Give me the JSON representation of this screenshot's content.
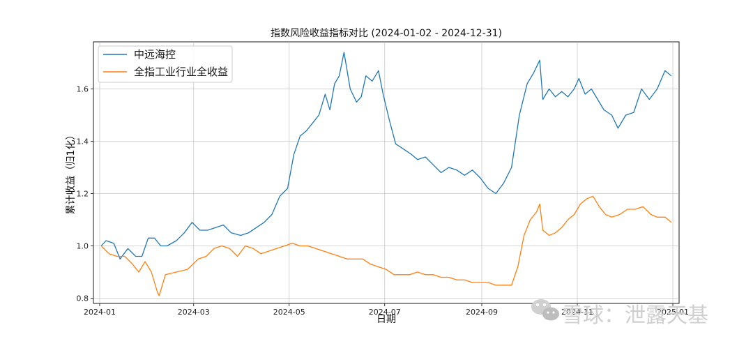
{
  "chart_data": {
    "type": "line",
    "title": "指数风险收益指标对比 (2024-01-02 - 2024-12-31)",
    "xlabel": "日期",
    "ylabel": "累计收益（归1化）",
    "x_range": [
      "2024-01-02",
      "2024-12-31"
    ],
    "ylim": [
      0.78,
      1.78
    ],
    "x_ticks": [
      "2024-01",
      "2024-03",
      "2024-05",
      "2024-07",
      "2024-09",
      "2024-11",
      "2025-01"
    ],
    "x_tick_dates": [
      "2024-01-01",
      "2024-03-01",
      "2024-05-01",
      "2024-07-01",
      "2024-09-01",
      "2024-11-01",
      "2025-01-01"
    ],
    "y_ticks": [
      0.8,
      1.0,
      1.2,
      1.4,
      1.6
    ],
    "grid": true,
    "legend_position": "upper-left",
    "series": [
      {
        "name": "中远海控",
        "color": "#1f77b4",
        "points": [
          [
            "2024-01-02",
            1.0
          ],
          [
            "2024-01-05",
            1.02
          ],
          [
            "2024-01-10",
            1.01
          ],
          [
            "2024-01-14",
            0.95
          ],
          [
            "2024-01-19",
            0.99
          ],
          [
            "2024-01-24",
            0.96
          ],
          [
            "2024-01-28",
            0.96
          ],
          [
            "2024-02-01",
            1.03
          ],
          [
            "2024-02-05",
            1.03
          ],
          [
            "2024-02-09",
            1.0
          ],
          [
            "2024-02-13",
            1.0
          ],
          [
            "2024-02-19",
            1.02
          ],
          [
            "2024-02-24",
            1.05
          ],
          [
            "2024-02-29",
            1.09
          ],
          [
            "2024-03-05",
            1.06
          ],
          [
            "2024-03-10",
            1.06
          ],
          [
            "2024-03-15",
            1.07
          ],
          [
            "2024-03-20",
            1.08
          ],
          [
            "2024-03-25",
            1.05
          ],
          [
            "2024-03-31",
            1.04
          ],
          [
            "2024-04-05",
            1.05
          ],
          [
            "2024-04-10",
            1.07
          ],
          [
            "2024-04-15",
            1.09
          ],
          [
            "2024-04-20",
            1.12
          ],
          [
            "2024-04-25",
            1.19
          ],
          [
            "2024-04-30",
            1.22
          ],
          [
            "2024-05-04",
            1.35
          ],
          [
            "2024-05-08",
            1.42
          ],
          [
            "2024-05-12",
            1.44
          ],
          [
            "2024-05-16",
            1.47
          ],
          [
            "2024-05-20",
            1.5
          ],
          [
            "2024-05-24",
            1.58
          ],
          [
            "2024-05-27",
            1.52
          ],
          [
            "2024-05-30",
            1.62
          ],
          [
            "2024-06-02",
            1.65
          ],
          [
            "2024-06-05",
            1.74
          ],
          [
            "2024-06-09",
            1.6
          ],
          [
            "2024-06-13",
            1.55
          ],
          [
            "2024-06-16",
            1.57
          ],
          [
            "2024-06-19",
            1.65
          ],
          [
            "2024-06-23",
            1.63
          ],
          [
            "2024-06-27",
            1.67
          ],
          [
            "2024-06-30",
            1.58
          ],
          [
            "2024-07-04",
            1.48
          ],
          [
            "2024-07-08",
            1.39
          ],
          [
            "2024-07-13",
            1.37
          ],
          [
            "2024-07-18",
            1.35
          ],
          [
            "2024-07-22",
            1.33
          ],
          [
            "2024-07-27",
            1.34
          ],
          [
            "2024-08-01",
            1.31
          ],
          [
            "2024-08-06",
            1.28
          ],
          [
            "2024-08-11",
            1.3
          ],
          [
            "2024-08-16",
            1.29
          ],
          [
            "2024-08-21",
            1.27
          ],
          [
            "2024-08-26",
            1.29
          ],
          [
            "2024-08-31",
            1.26
          ],
          [
            "2024-09-05",
            1.22
          ],
          [
            "2024-09-10",
            1.2
          ],
          [
            "2024-09-15",
            1.24
          ],
          [
            "2024-09-20",
            1.3
          ],
          [
            "2024-09-25",
            1.5
          ],
          [
            "2024-09-30",
            1.62
          ],
          [
            "2024-10-04",
            1.66
          ],
          [
            "2024-10-08",
            1.71
          ],
          [
            "2024-10-10",
            1.56
          ],
          [
            "2024-10-14",
            1.6
          ],
          [
            "2024-10-18",
            1.57
          ],
          [
            "2024-10-22",
            1.59
          ],
          [
            "2024-10-26",
            1.57
          ],
          [
            "2024-10-30",
            1.6
          ],
          [
            "2024-11-02",
            1.64
          ],
          [
            "2024-11-06",
            1.58
          ],
          [
            "2024-11-10",
            1.6
          ],
          [
            "2024-11-14",
            1.56
          ],
          [
            "2024-11-18",
            1.52
          ],
          [
            "2024-11-23",
            1.5
          ],
          [
            "2024-11-27",
            1.45
          ],
          [
            "2024-12-02",
            1.5
          ],
          [
            "2024-12-07",
            1.51
          ],
          [
            "2024-12-12",
            1.6
          ],
          [
            "2024-12-17",
            1.56
          ],
          [
            "2024-12-22",
            1.6
          ],
          [
            "2024-12-27",
            1.67
          ],
          [
            "2024-12-31",
            1.65
          ]
        ]
      },
      {
        "name": "全指工业行业全收益",
        "color": "#ff7f0e",
        "points": [
          [
            "2024-01-02",
            1.0
          ],
          [
            "2024-01-07",
            0.97
          ],
          [
            "2024-01-12",
            0.96
          ],
          [
            "2024-01-17",
            0.96
          ],
          [
            "2024-01-22",
            0.93
          ],
          [
            "2024-01-26",
            0.9
          ],
          [
            "2024-01-30",
            0.94
          ],
          [
            "2024-02-03",
            0.9
          ],
          [
            "2024-02-07",
            0.82
          ],
          [
            "2024-02-08",
            0.81
          ],
          [
            "2024-02-12",
            0.89
          ],
          [
            "2024-02-19",
            0.9
          ],
          [
            "2024-02-26",
            0.91
          ],
          [
            "2024-03-04",
            0.95
          ],
          [
            "2024-03-09",
            0.96
          ],
          [
            "2024-03-14",
            0.99
          ],
          [
            "2024-03-19",
            1.0
          ],
          [
            "2024-03-24",
            0.99
          ],
          [
            "2024-03-29",
            0.96
          ],
          [
            "2024-04-03",
            1.0
          ],
          [
            "2024-04-08",
            0.99
          ],
          [
            "2024-04-13",
            0.97
          ],
          [
            "2024-04-18",
            0.98
          ],
          [
            "2024-04-23",
            0.99
          ],
          [
            "2024-04-28",
            1.0
          ],
          [
            "2024-05-03",
            1.01
          ],
          [
            "2024-05-08",
            1.0
          ],
          [
            "2024-05-13",
            1.0
          ],
          [
            "2024-05-18",
            0.99
          ],
          [
            "2024-05-23",
            0.98
          ],
          [
            "2024-05-28",
            0.97
          ],
          [
            "2024-06-02",
            0.96
          ],
          [
            "2024-06-07",
            0.95
          ],
          [
            "2024-06-12",
            0.95
          ],
          [
            "2024-06-17",
            0.95
          ],
          [
            "2024-06-22",
            0.93
          ],
          [
            "2024-06-27",
            0.92
          ],
          [
            "2024-07-02",
            0.91
          ],
          [
            "2024-07-07",
            0.89
          ],
          [
            "2024-07-12",
            0.89
          ],
          [
            "2024-07-17",
            0.89
          ],
          [
            "2024-07-22",
            0.9
          ],
          [
            "2024-07-27",
            0.89
          ],
          [
            "2024-08-01",
            0.89
          ],
          [
            "2024-08-06",
            0.88
          ],
          [
            "2024-08-11",
            0.88
          ],
          [
            "2024-08-16",
            0.87
          ],
          [
            "2024-08-21",
            0.87
          ],
          [
            "2024-08-26",
            0.86
          ],
          [
            "2024-08-31",
            0.86
          ],
          [
            "2024-09-05",
            0.86
          ],
          [
            "2024-09-10",
            0.85
          ],
          [
            "2024-09-15",
            0.85
          ],
          [
            "2024-09-20",
            0.85
          ],
          [
            "2024-09-24",
            0.92
          ],
          [
            "2024-09-28",
            1.04
          ],
          [
            "2024-10-02",
            1.1
          ],
          [
            "2024-10-06",
            1.13
          ],
          [
            "2024-10-08",
            1.16
          ],
          [
            "2024-10-10",
            1.06
          ],
          [
            "2024-10-14",
            1.04
          ],
          [
            "2024-10-18",
            1.05
          ],
          [
            "2024-10-22",
            1.07
          ],
          [
            "2024-10-26",
            1.1
          ],
          [
            "2024-10-30",
            1.12
          ],
          [
            "2024-11-03",
            1.16
          ],
          [
            "2024-11-07",
            1.18
          ],
          [
            "2024-11-11",
            1.19
          ],
          [
            "2024-11-15",
            1.15
          ],
          [
            "2024-11-19",
            1.12
          ],
          [
            "2024-11-23",
            1.11
          ],
          [
            "2024-11-28",
            1.12
          ],
          [
            "2024-12-03",
            1.14
          ],
          [
            "2024-12-08",
            1.14
          ],
          [
            "2024-12-13",
            1.15
          ],
          [
            "2024-12-18",
            1.12
          ],
          [
            "2024-12-22",
            1.11
          ],
          [
            "2024-12-27",
            1.11
          ],
          [
            "2024-12-31",
            1.09
          ]
        ]
      }
    ]
  },
  "watermark": {
    "text": "雪球：泄露天基",
    "logo_icon": "wechat-icon"
  }
}
